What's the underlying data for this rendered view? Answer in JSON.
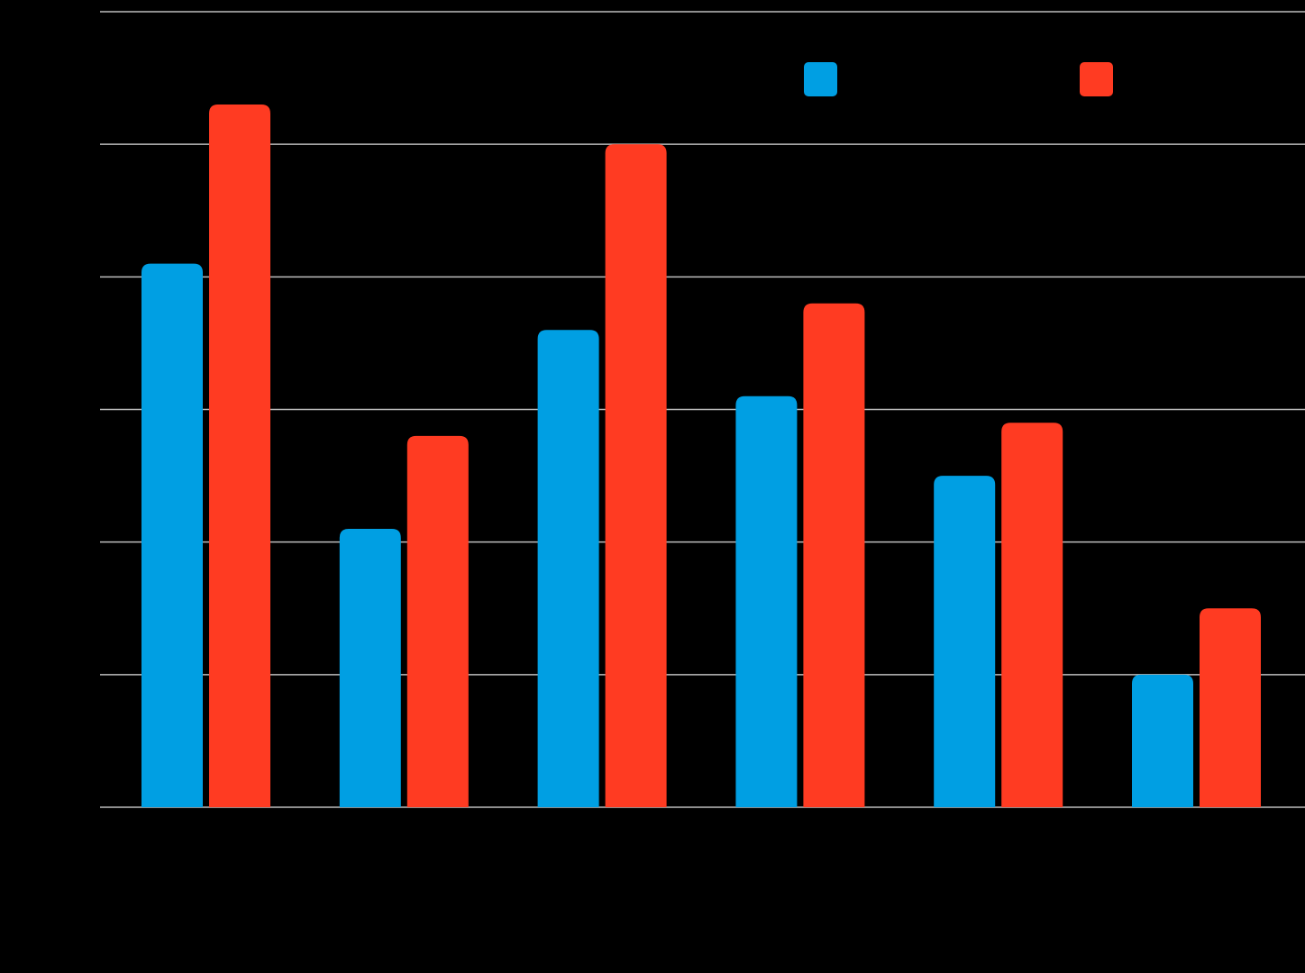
{
  "chart_data": {
    "type": "bar",
    "title": "",
    "xlabel": "",
    "ylabel": "",
    "categories": [
      "",
      "",
      "",
      "",
      "",
      ""
    ],
    "series": [
      {
        "color": "#009FE3",
        "values": [
          41,
          21,
          36,
          31,
          25,
          10
        ]
      },
      {
        "color": "#FF3B22",
        "values": [
          53,
          28,
          50,
          38,
          29,
          15
        ]
      }
    ],
    "ylim": [
      0,
      60
    ],
    "yticks": [
      0,
      10,
      20,
      30,
      40,
      50,
      60
    ],
    "grid": true,
    "legend": {
      "position": "top-right",
      "entries": [
        "",
        ""
      ]
    }
  },
  "colors": {
    "background": "#000000",
    "grid": "#BDBDBD"
  }
}
